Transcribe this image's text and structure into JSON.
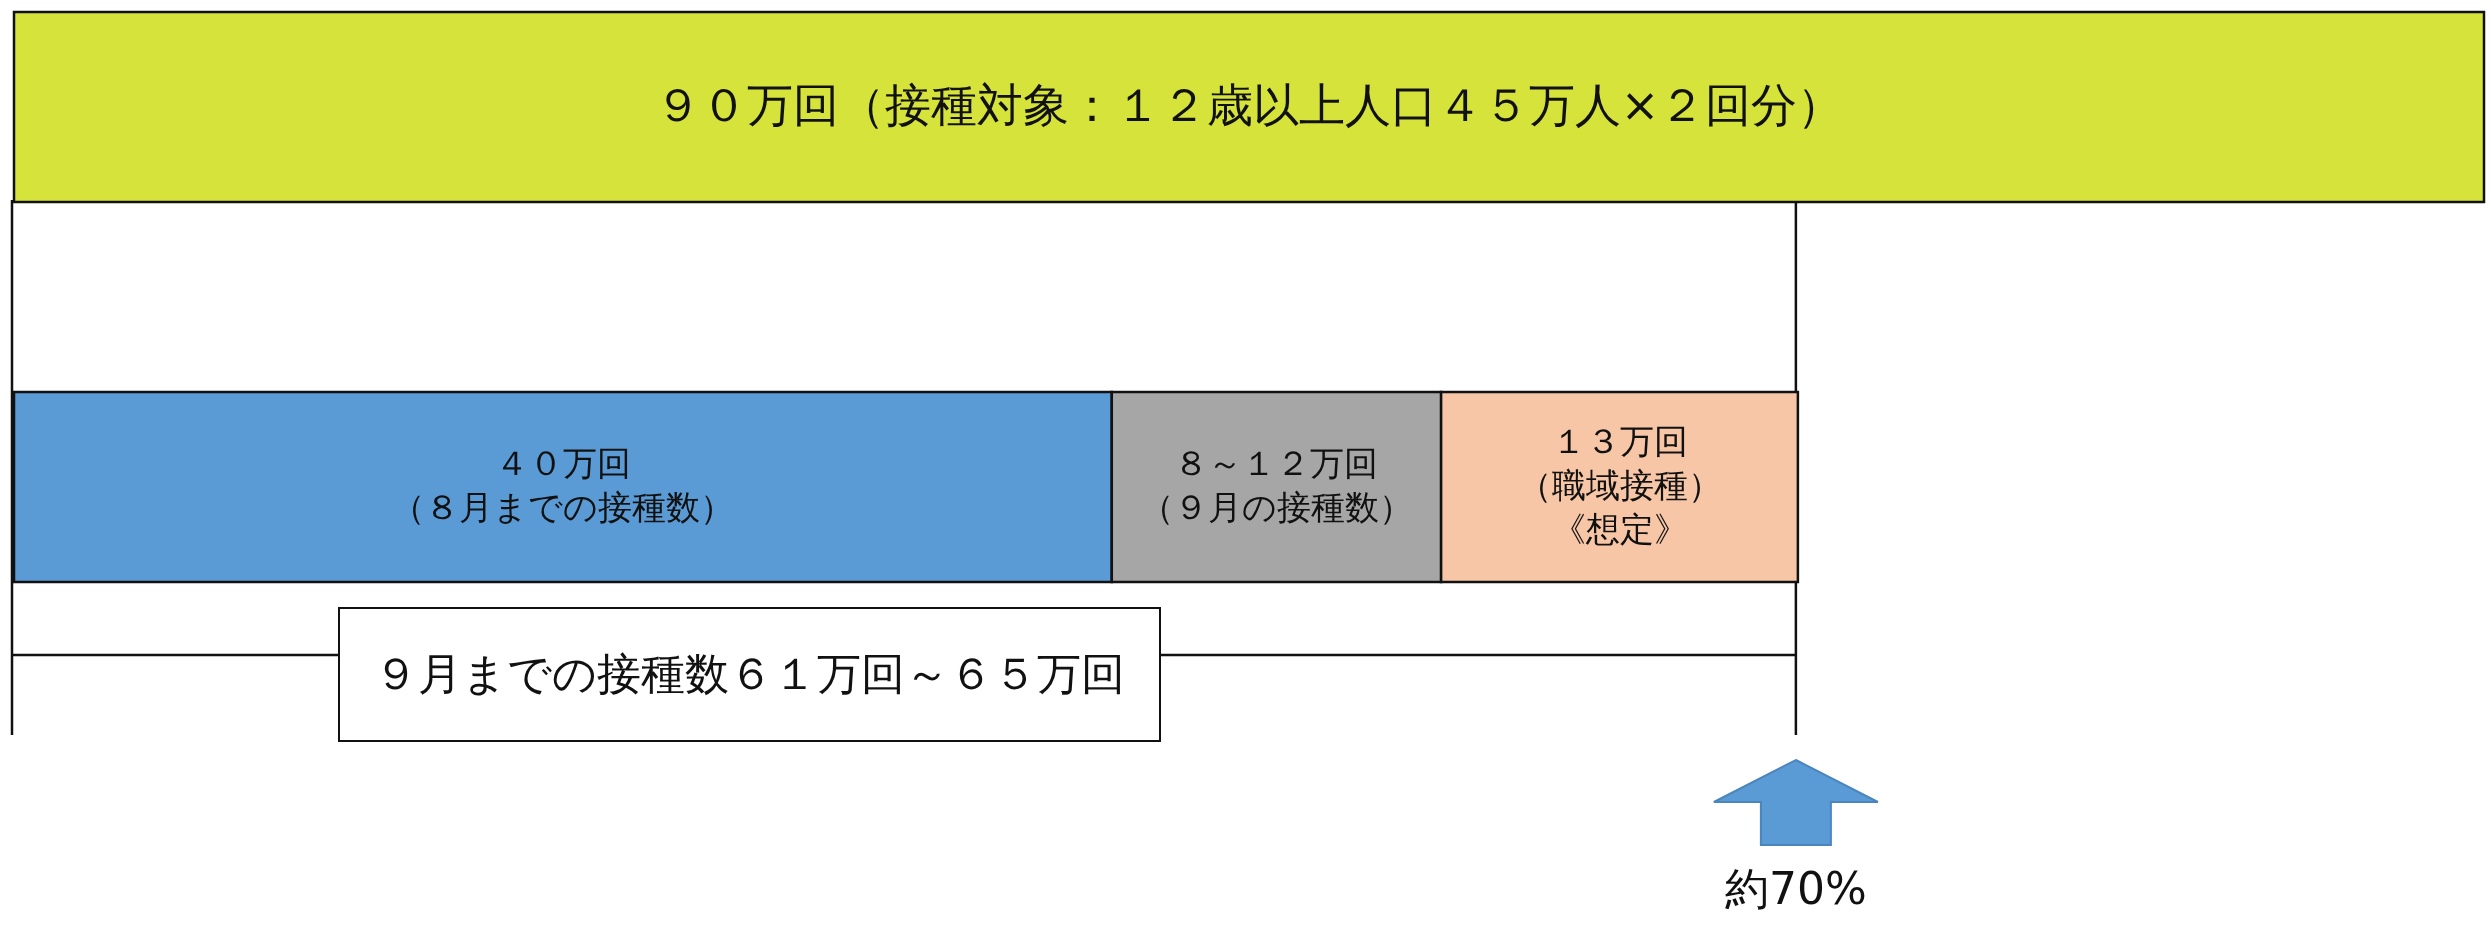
{
  "chart_data": {
    "type": "bar",
    "orientation": "horizontal",
    "stacked": true,
    "categories": [
      null,
      null
    ],
    "series": [
      {
        "color": "#d6e33a",
        "values": [
          90,
          null
        ],
        "value_labels": [
          "９０万回（接種対象：１２歳以上人口４５万人×２回分）",
          null
        ]
      },
      {
        "color": "#5b9bd5",
        "values": [
          null,
          40
        ],
        "value_labels": [
          null,
          "４０万回（８月までの接種数）"
        ]
      },
      {
        "color": "#a6a6a6",
        "values": [
          null,
          12
        ],
        "value_labels": [
          null,
          "８～１２万回（９月の接種数）"
        ]
      },
      {
        "color": "#f7c6a6",
        "values": [
          null,
          13
        ],
        "value_labels": [
          null,
          "１３万回（職域接種）《想定》"
        ]
      }
    ],
    "annotations": [
      "９月までの接種数６１万回～６５万回",
      "約70%"
    ]
  }
}
